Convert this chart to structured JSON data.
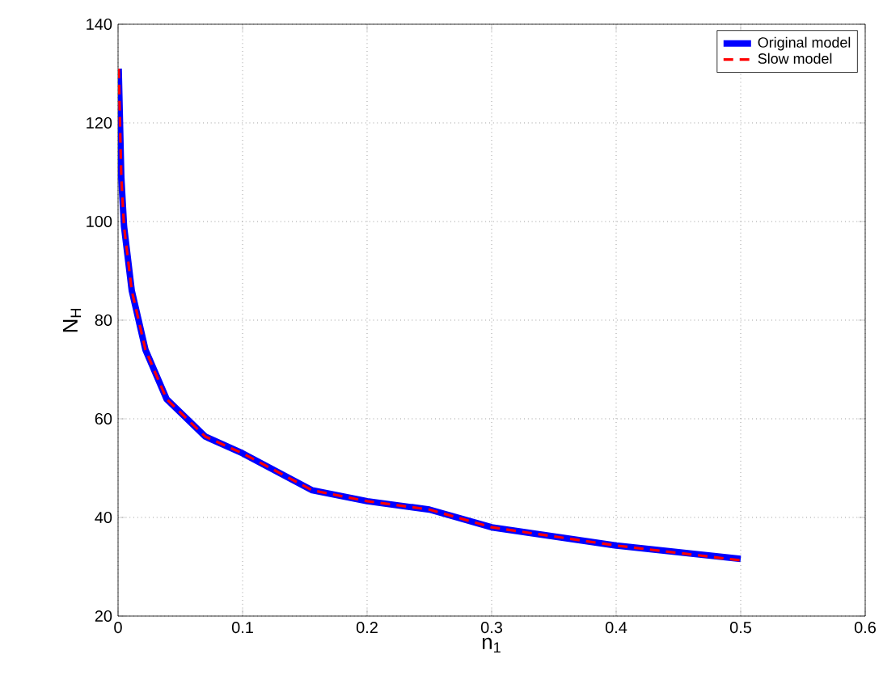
{
  "chart_data": {
    "type": "line",
    "xlabel": "n$_{1}$",
    "ylabel": "N$_{H}$",
    "xlim": [
      0,
      0.6
    ],
    "ylim": [
      20,
      140
    ],
    "xticks": [
      0,
      0.1,
      0.2,
      0.3,
      0.4,
      0.5,
      0.6
    ],
    "yticks": [
      20,
      40,
      60,
      80,
      100,
      120,
      140
    ],
    "grid": true,
    "legend": "top right",
    "series": [
      {
        "name": "Original model",
        "color": "#0000ff",
        "line_style": "solid",
        "x": [
          0.0005,
          0.0026,
          0.0048,
          0.011,
          0.022,
          0.039,
          0.07,
          0.1,
          0.156,
          0.2,
          0.25,
          0.3,
          0.4,
          0.5
        ],
        "values": [
          131,
          109,
          99,
          86,
          74,
          64,
          56.4,
          53,
          45.5,
          43.3,
          41.6,
          38,
          34.3,
          31.6
        ]
      },
      {
        "name": "Slow model",
        "color": "#ff0000",
        "line_style": "dashed",
        "x": [
          0.0005,
          0.0026,
          0.0048,
          0.011,
          0.022,
          0.039,
          0.07,
          0.1,
          0.156,
          0.2,
          0.25,
          0.3,
          0.4,
          0.5
        ],
        "values": [
          131,
          109,
          99,
          86,
          74,
          64,
          56.4,
          53,
          45.5,
          43.3,
          41.6,
          38,
          34.3,
          31.3
        ]
      }
    ]
  }
}
